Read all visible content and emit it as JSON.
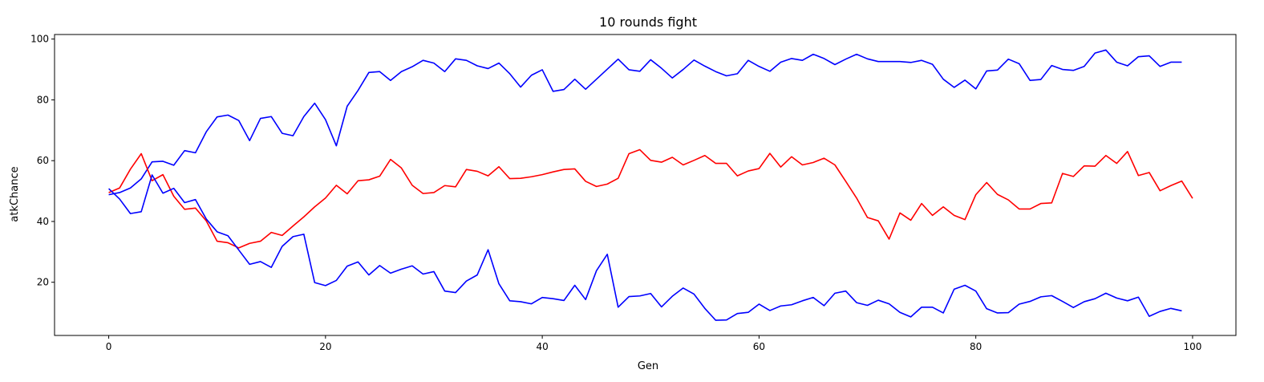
{
  "chart_data": {
    "type": "line",
    "title": "10 rounds fight",
    "xlabel": "Gen",
    "ylabel": "atkChance",
    "xlim": [
      -5,
      104
    ],
    "ylim": [
      2.5,
      101.5
    ],
    "xticks": [
      0,
      20,
      40,
      60,
      80,
      100
    ],
    "yticks": [
      20,
      40,
      60,
      80,
      100
    ],
    "grid": false,
    "series": [
      {
        "color": "#0000ff",
        "values": [
          48.8,
          49.5,
          51.0,
          54.0,
          59.6,
          59.8,
          58.5,
          63.3,
          62.6,
          69.5,
          74.4,
          75.0,
          73.2,
          66.6,
          73.9,
          74.5,
          69.0,
          68.2,
          74.5,
          78.9,
          73.5,
          64.9,
          77.9,
          83.1,
          89.0,
          89.3,
          86.4,
          89.3,
          90.9,
          93.0,
          92.1,
          89.3,
          93.5,
          93.0,
          91.2,
          90.3,
          92.1,
          88.6,
          84.2,
          88.1,
          89.9,
          82.8,
          83.4,
          86.8,
          83.5,
          86.8,
          90.1,
          93.4,
          89.9,
          89.4,
          93.2,
          90.4,
          87.2,
          90.0,
          93.1,
          91.1,
          89.3,
          87.9,
          88.6,
          93.0,
          91.0,
          89.4,
          92.4,
          93.6,
          93.0,
          95.0,
          93.6,
          91.6,
          93.4,
          95.0,
          93.5,
          92.6,
          92.6,
          92.6,
          92.3,
          93.0,
          91.7,
          86.8,
          84.1,
          86.5,
          83.6,
          89.5,
          89.8,
          93.4,
          91.9,
          86.4,
          86.7,
          91.3,
          90.0,
          89.7,
          91.0,
          95.4,
          96.4,
          92.4,
          91.2,
          94.2,
          94.5,
          91.0,
          92.4,
          92.4
        ]
      },
      {
        "color": "#ff0000",
        "values": [
          49.5,
          51.0,
          57.2,
          62.3,
          53.4,
          55.4,
          48.3,
          44.0,
          44.4,
          40.2,
          33.5,
          33.0,
          31.3,
          32.8,
          33.5,
          36.4,
          35.4,
          38.5,
          41.5,
          44.8,
          47.7,
          51.9,
          49.1,
          53.4,
          53.7,
          54.9,
          60.4,
          57.6,
          51.9,
          49.2,
          49.5,
          51.8,
          51.4,
          57.1,
          56.5,
          55.0,
          58.0,
          54.1,
          54.2,
          54.7,
          55.4,
          56.3,
          57.1,
          57.3,
          53.2,
          51.5,
          52.3,
          54.2,
          62.3,
          63.6,
          60.1,
          59.5,
          61.1,
          58.6,
          60.1,
          61.7,
          59.1,
          59.1,
          55.0,
          56.6,
          57.4,
          62.4,
          57.9,
          61.3,
          58.6,
          59.4,
          60.8,
          58.6,
          53.2,
          47.7,
          41.3,
          40.2,
          34.2,
          42.8,
          40.4,
          45.9,
          42.0,
          44.8,
          42.0,
          40.6,
          48.8,
          52.8,
          48.9,
          47.1,
          44.1,
          44.1,
          45.9,
          46.1,
          55.8,
          54.8,
          58.3,
          58.2,
          61.7,
          59.1,
          63.0,
          55.1,
          56.1,
          50.1,
          51.8,
          53.3,
          47.6
        ]
      },
      {
        "color": "#0000ff",
        "values": [
          50.8,
          47.4,
          42.6,
          43.2,
          55.3,
          49.3,
          50.9,
          46.2,
          47.2,
          40.8,
          36.6,
          35.3,
          30.6,
          25.9,
          26.8,
          24.9,
          31.8,
          35.0,
          35.8,
          19.9,
          18.9,
          20.6,
          25.3,
          26.7,
          22.4,
          25.5,
          23.0,
          24.3,
          25.4,
          22.7,
          23.5,
          17.1,
          16.6,
          20.4,
          22.4,
          30.7,
          19.5,
          13.9,
          13.6,
          12.9,
          15.0,
          14.6,
          14.0,
          19.0,
          14.3,
          23.8,
          29.2,
          11.8,
          15.3,
          15.5,
          16.3,
          11.9,
          15.4,
          18.1,
          16.1,
          11.4,
          7.5,
          7.6,
          9.7,
          10.1,
          12.8,
          10.7,
          12.2,
          12.6,
          13.9,
          15.0,
          12.3,
          16.4,
          17.1,
          13.3,
          12.4,
          14.1,
          12.9,
          10.1,
          8.6,
          11.8,
          11.8,
          9.9,
          17.7,
          19.0,
          17.1,
          11.3,
          9.9,
          10.0,
          12.8,
          13.7,
          15.2,
          15.6,
          13.7,
          11.7,
          13.6,
          14.6,
          16.4,
          14.8,
          13.9,
          15.1,
          8.8,
          10.4,
          11.4,
          10.6
        ]
      }
    ]
  }
}
